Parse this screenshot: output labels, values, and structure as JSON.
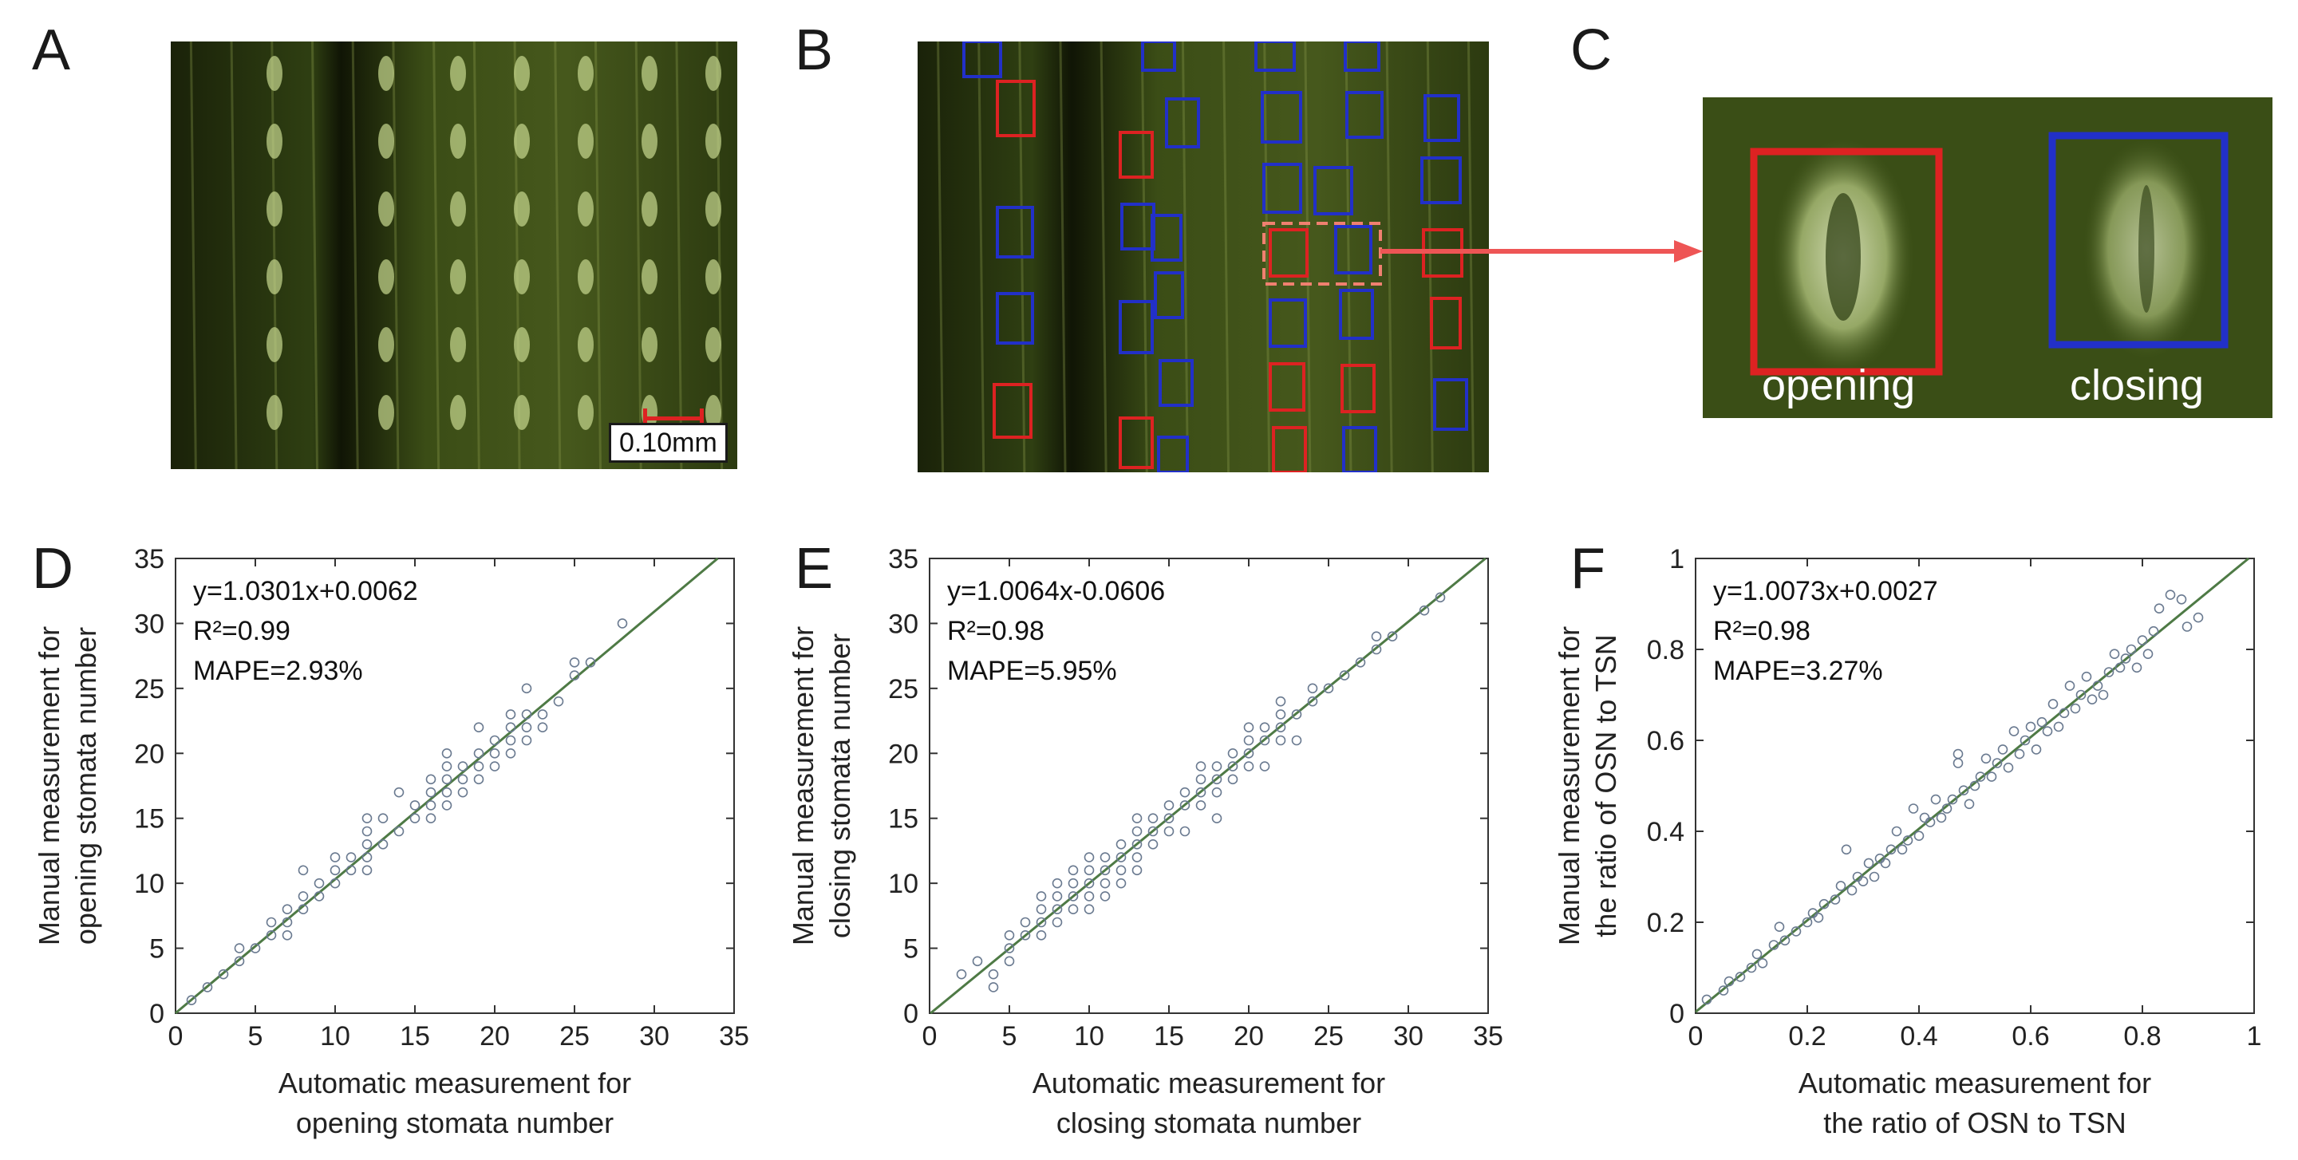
{
  "panels": {
    "a": "A",
    "b": "B",
    "c": "C",
    "d": "D",
    "e": "E",
    "f": "F"
  },
  "scale_bar": "0.10mm",
  "zoom_labels": {
    "opening": "opening",
    "closing": "closing"
  },
  "colors": {
    "opening_box": "#dd2222",
    "closing_box": "#2230c8",
    "arrow": "#ee5555",
    "fit_line": "#4e7a45",
    "points": "#6a7a90"
  },
  "chart_data": [
    {
      "type": "scatter",
      "panel": "D",
      "annotation": [
        "y=1.0301x+0.0062",
        "R²=0.99",
        "MAPE=2.93%"
      ],
      "xlabel": [
        "Automatic measurement for",
        "opening stomata number"
      ],
      "ylabel": [
        "Manual measurement for",
        "opening stomata number"
      ],
      "xlim": [
        0,
        35
      ],
      "ylim": [
        0,
        35
      ],
      "xticks": [
        0,
        5,
        10,
        15,
        20,
        25,
        30,
        35
      ],
      "yticks": [
        0,
        5,
        10,
        15,
        20,
        25,
        30,
        35
      ],
      "tick_decimals": 0,
      "fit": {
        "slope": 1.0301,
        "intercept": 0.0062
      },
      "points": [
        [
          1,
          1
        ],
        [
          2,
          2
        ],
        [
          3,
          3
        ],
        [
          4,
          4
        ],
        [
          4,
          5
        ],
        [
          5,
          5
        ],
        [
          6,
          6
        ],
        [
          6,
          7
        ],
        [
          7,
          6
        ],
        [
          7,
          7
        ],
        [
          7,
          8
        ],
        [
          8,
          8
        ],
        [
          8,
          9
        ],
        [
          8,
          11
        ],
        [
          9,
          9
        ],
        [
          9,
          10
        ],
        [
          10,
          10
        ],
        [
          10,
          11
        ],
        [
          10,
          12
        ],
        [
          11,
          11
        ],
        [
          11,
          12
        ],
        [
          12,
          11
        ],
        [
          12,
          12
        ],
        [
          12,
          13
        ],
        [
          12,
          14
        ],
        [
          12,
          15
        ],
        [
          13,
          13
        ],
        [
          13,
          15
        ],
        [
          14,
          14
        ],
        [
          14,
          17
        ],
        [
          15,
          15
        ],
        [
          15,
          16
        ],
        [
          16,
          16
        ],
        [
          16,
          15
        ],
        [
          16,
          17
        ],
        [
          16,
          18
        ],
        [
          17,
          16
        ],
        [
          17,
          17
        ],
        [
          17,
          18
        ],
        [
          17,
          19
        ],
        [
          17,
          20
        ],
        [
          18,
          17
        ],
        [
          18,
          18
        ],
        [
          18,
          19
        ],
        [
          19,
          18
        ],
        [
          19,
          19
        ],
        [
          19,
          20
        ],
        [
          19,
          22
        ],
        [
          20,
          19
        ],
        [
          20,
          20
        ],
        [
          20,
          21
        ],
        [
          21,
          20
        ],
        [
          21,
          21
        ],
        [
          21,
          22
        ],
        [
          21,
          23
        ],
        [
          22,
          21
        ],
        [
          22,
          22
        ],
        [
          22,
          23
        ],
        [
          22,
          25
        ],
        [
          23,
          22
        ],
        [
          23,
          23
        ],
        [
          24,
          24
        ],
        [
          25,
          26
        ],
        [
          25,
          27
        ],
        [
          26,
          27
        ],
        [
          28,
          30
        ]
      ]
    },
    {
      "type": "scatter",
      "panel": "E",
      "annotation": [
        "y=1.0064x-0.0606",
        "R²=0.98",
        "MAPE=5.95%"
      ],
      "xlabel": [
        "Automatic measurement for",
        "closing stomata number"
      ],
      "ylabel": [
        "Manual measurement for",
        "closing stomata number"
      ],
      "xlim": [
        0,
        35
      ],
      "ylim": [
        0,
        35
      ],
      "xticks": [
        0,
        5,
        10,
        15,
        20,
        25,
        30,
        35
      ],
      "yticks": [
        0,
        5,
        10,
        15,
        20,
        25,
        30,
        35
      ],
      "tick_decimals": 0,
      "fit": {
        "slope": 1.0064,
        "intercept": -0.0606
      },
      "points": [
        [
          2,
          3
        ],
        [
          3,
          4
        ],
        [
          4,
          2
        ],
        [
          4,
          3
        ],
        [
          5,
          4
        ],
        [
          5,
          5
        ],
        [
          5,
          6
        ],
        [
          6,
          6
        ],
        [
          6,
          7
        ],
        [
          7,
          6
        ],
        [
          7,
          7
        ],
        [
          7,
          8
        ],
        [
          7,
          9
        ],
        [
          8,
          7
        ],
        [
          8,
          8
        ],
        [
          8,
          9
        ],
        [
          8,
          10
        ],
        [
          9,
          8
        ],
        [
          9,
          9
        ],
        [
          9,
          10
        ],
        [
          9,
          11
        ],
        [
          10,
          8
        ],
        [
          10,
          9
        ],
        [
          10,
          10
        ],
        [
          10,
          11
        ],
        [
          10,
          12
        ],
        [
          11,
          9
        ],
        [
          11,
          10
        ],
        [
          11,
          11
        ],
        [
          11,
          12
        ],
        [
          12,
          10
        ],
        [
          12,
          11
        ],
        [
          12,
          12
        ],
        [
          12,
          13
        ],
        [
          13,
          11
        ],
        [
          13,
          12
        ],
        [
          13,
          13
        ],
        [
          13,
          14
        ],
        [
          13,
          15
        ],
        [
          14,
          13
        ],
        [
          14,
          14
        ],
        [
          14,
          15
        ],
        [
          15,
          14
        ],
        [
          15,
          15
        ],
        [
          15,
          16
        ],
        [
          16,
          14
        ],
        [
          16,
          16
        ],
        [
          16,
          17
        ],
        [
          17,
          16
        ],
        [
          17,
          17
        ],
        [
          17,
          18
        ],
        [
          17,
          19
        ],
        [
          18,
          15
        ],
        [
          18,
          17
        ],
        [
          18,
          18
        ],
        [
          18,
          19
        ],
        [
          19,
          18
        ],
        [
          19,
          19
        ],
        [
          19,
          20
        ],
        [
          20,
          19
        ],
        [
          20,
          20
        ],
        [
          20,
          21
        ],
        [
          20,
          22
        ],
        [
          21,
          19
        ],
        [
          21,
          21
        ],
        [
          21,
          22
        ],
        [
          22,
          21
        ],
        [
          22,
          22
        ],
        [
          22,
          23
        ],
        [
          22,
          24
        ],
        [
          23,
          21
        ],
        [
          23,
          23
        ],
        [
          24,
          24
        ],
        [
          24,
          25
        ],
        [
          25,
          25
        ],
        [
          26,
          26
        ],
        [
          27,
          27
        ],
        [
          28,
          28
        ],
        [
          28,
          29
        ],
        [
          29,
          29
        ],
        [
          31,
          31
        ],
        [
          32,
          32
        ]
      ]
    },
    {
      "type": "scatter",
      "panel": "F",
      "annotation": [
        "y=1.0073x+0.0027",
        "R²=0.98",
        "MAPE=3.27%"
      ],
      "xlabel": [
        "Automatic measurement for",
        "the ratio of OSN to TSN"
      ],
      "ylabel": [
        "Manual measurement for",
        "the ratio of OSN to TSN"
      ],
      "xlim": [
        0,
        1
      ],
      "ylim": [
        0,
        1
      ],
      "xticks": [
        0,
        0.2,
        0.4,
        0.6,
        0.8,
        1
      ],
      "yticks": [
        0,
        0.2,
        0.4,
        0.6,
        0.8,
        1
      ],
      "tick_decimals": 1,
      "fit": {
        "slope": 1.0073,
        "intercept": 0.0027
      },
      "points": [
        [
          0.02,
          0.03
        ],
        [
          0.05,
          0.05
        ],
        [
          0.06,
          0.07
        ],
        [
          0.08,
          0.08
        ],
        [
          0.1,
          0.1
        ],
        [
          0.11,
          0.13
        ],
        [
          0.12,
          0.11
        ],
        [
          0.14,
          0.15
        ],
        [
          0.15,
          0.19
        ],
        [
          0.16,
          0.16
        ],
        [
          0.18,
          0.18
        ],
        [
          0.2,
          0.2
        ],
        [
          0.21,
          0.22
        ],
        [
          0.22,
          0.21
        ],
        [
          0.23,
          0.24
        ],
        [
          0.25,
          0.25
        ],
        [
          0.26,
          0.28
        ],
        [
          0.27,
          0.36
        ],
        [
          0.28,
          0.27
        ],
        [
          0.29,
          0.3
        ],
        [
          0.3,
          0.29
        ],
        [
          0.31,
          0.33
        ],
        [
          0.32,
          0.3
        ],
        [
          0.33,
          0.34
        ],
        [
          0.34,
          0.33
        ],
        [
          0.35,
          0.36
        ],
        [
          0.36,
          0.4
        ],
        [
          0.37,
          0.36
        ],
        [
          0.38,
          0.38
        ],
        [
          0.39,
          0.45
        ],
        [
          0.4,
          0.39
        ],
        [
          0.41,
          0.43
        ],
        [
          0.42,
          0.42
        ],
        [
          0.43,
          0.47
        ],
        [
          0.44,
          0.43
        ],
        [
          0.45,
          0.45
        ],
        [
          0.46,
          0.47
        ],
        [
          0.47,
          0.57
        ],
        [
          0.47,
          0.55
        ],
        [
          0.48,
          0.49
        ],
        [
          0.49,
          0.46
        ],
        [
          0.5,
          0.5
        ],
        [
          0.51,
          0.52
        ],
        [
          0.52,
          0.56
        ],
        [
          0.53,
          0.52
        ],
        [
          0.54,
          0.55
        ],
        [
          0.55,
          0.58
        ],
        [
          0.56,
          0.54
        ],
        [
          0.57,
          0.62
        ],
        [
          0.58,
          0.57
        ],
        [
          0.59,
          0.6
        ],
        [
          0.6,
          0.63
        ],
        [
          0.61,
          0.58
        ],
        [
          0.62,
          0.64
        ],
        [
          0.63,
          0.62
        ],
        [
          0.64,
          0.68
        ],
        [
          0.65,
          0.63
        ],
        [
          0.66,
          0.66
        ],
        [
          0.67,
          0.72
        ],
        [
          0.68,
          0.67
        ],
        [
          0.69,
          0.7
        ],
        [
          0.7,
          0.74
        ],
        [
          0.71,
          0.69
        ],
        [
          0.72,
          0.72
        ],
        [
          0.73,
          0.7
        ],
        [
          0.74,
          0.75
        ],
        [
          0.75,
          0.79
        ],
        [
          0.76,
          0.76
        ],
        [
          0.77,
          0.78
        ],
        [
          0.78,
          0.8
        ],
        [
          0.79,
          0.76
        ],
        [
          0.8,
          0.82
        ],
        [
          0.81,
          0.79
        ],
        [
          0.82,
          0.84
        ],
        [
          0.83,
          0.89
        ],
        [
          0.85,
          0.92
        ],
        [
          0.87,
          0.91
        ],
        [
          0.88,
          0.85
        ],
        [
          0.9,
          0.87
        ]
      ]
    }
  ]
}
